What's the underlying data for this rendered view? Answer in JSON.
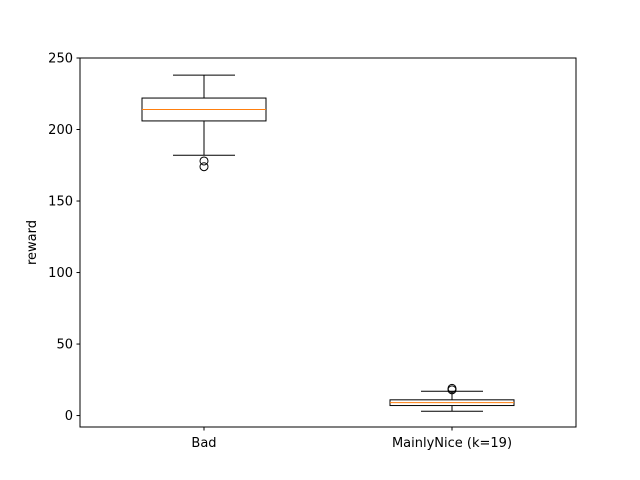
{
  "chart_data": {
    "type": "box",
    "title": "",
    "xlabel": "",
    "ylabel": "reward",
    "ylim": [
      -8,
      250
    ],
    "yticks": [
      0,
      50,
      100,
      150,
      200,
      250
    ],
    "grid": false,
    "categories": [
      "Bad",
      "MainlyNice (k=19)"
    ],
    "boxes": [
      {
        "category": "Bad",
        "whisker_low": 182,
        "q1": 206,
        "median": 214,
        "q3": 222,
        "whisker_high": 238,
        "outliers": [
          178,
          174
        ]
      },
      {
        "category": "MainlyNice (k=19)",
        "whisker_low": 3,
        "q1": 7,
        "median": 9,
        "q3": 11,
        "whisker_high": 17,
        "outliers": [
          18,
          19
        ]
      }
    ],
    "colors": {
      "box": "#000000",
      "median": "#ff7f0e",
      "outlier": "#000000"
    }
  }
}
